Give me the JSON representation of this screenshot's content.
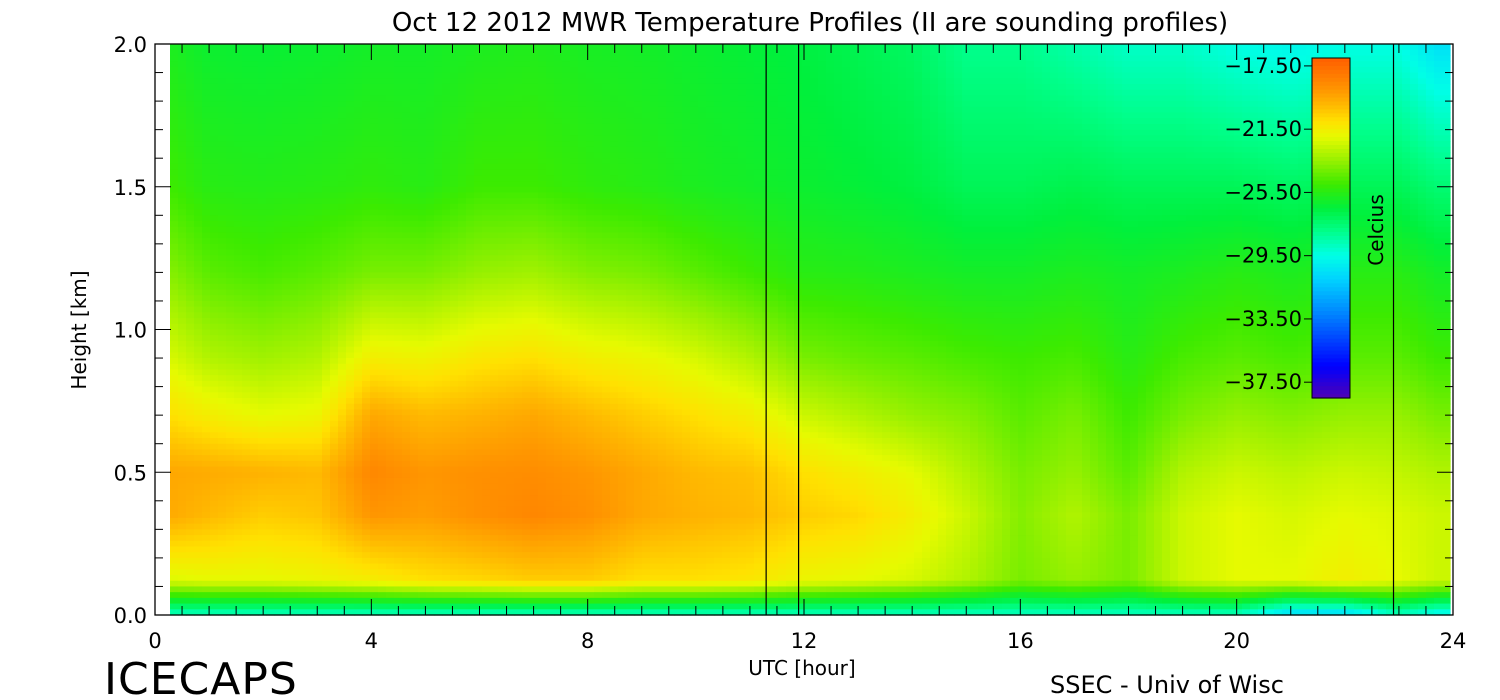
{
  "chart_data": {
    "type": "heatmap",
    "title": "Oct 12 2012 MWR Temperature Profiles (II are sounding profiles)",
    "xlabel": "UTC [hour]",
    "ylabel": "Height [km]",
    "xlim": [
      0,
      24
    ],
    "ylim": [
      0,
      2
    ],
    "x_ticks": [
      "0",
      "4",
      "8",
      "12",
      "16",
      "20",
      "24"
    ],
    "y_ticks": [
      "0.0",
      "0.5",
      "1.0",
      "1.5",
      "2.0"
    ],
    "colorbar": {
      "label": "Celcius",
      "ticks": [
        "-17.50",
        "-21.50",
        "-25.50",
        "-29.50",
        "-33.50",
        "-37.50"
      ],
      "range": [
        -38.5,
        -17.0
      ]
    },
    "sounding_markers_utc": [
      11.3,
      11.9,
      22.9
    ],
    "annotations": {
      "brand": "ICECAPS",
      "credit": "SSEC - Univ of Wisc"
    },
    "profiles": [
      {
        "time": 0.3,
        "values": [
          -29,
          -22.2,
          -19.6,
          -19.5,
          -21.0,
          -22.3,
          -23.8,
          -25.0,
          -25.8
        ]
      },
      {
        "time": 1.0,
        "values": [
          -29,
          -22.0,
          -20.0,
          -19.6,
          -21.5,
          -23.0,
          -24.5,
          -25.5,
          -26.2
        ]
      },
      {
        "time": 2.0,
        "values": [
          -29,
          -22.0,
          -20.5,
          -19.8,
          -22.0,
          -23.3,
          -24.8,
          -25.6,
          -26.3
        ]
      },
      {
        "time": 3.0,
        "values": [
          -29,
          -21.8,
          -20.3,
          -20.0,
          -21.8,
          -23.0,
          -24.5,
          -25.5,
          -26.2
        ]
      },
      {
        "time": 4.0,
        "values": [
          -29,
          -21.5,
          -19.0,
          -18.5,
          -19.5,
          -21.5,
          -24.0,
          -25.3,
          -26.0
        ]
      },
      {
        "time": 5.0,
        "values": [
          -29,
          -21.0,
          -19.2,
          -19.0,
          -20.0,
          -21.7,
          -24.0,
          -25.5,
          -26.0
        ]
      },
      {
        "time": 6.0,
        "values": [
          -29,
          -20.8,
          -18.8,
          -18.8,
          -19.8,
          -21.2,
          -23.5,
          -25.0,
          -25.8
        ]
      },
      {
        "time": 7.0,
        "values": [
          -29,
          -20.5,
          -18.5,
          -18.7,
          -19.5,
          -21.0,
          -23.3,
          -25.0,
          -25.7
        ]
      },
      {
        "time": 8.0,
        "values": [
          -29,
          -20.5,
          -18.8,
          -19.0,
          -20.0,
          -21.5,
          -23.8,
          -25.3,
          -25.9
        ]
      },
      {
        "time": 9.0,
        "values": [
          -29,
          -21.0,
          -19.5,
          -19.5,
          -20.5,
          -21.8,
          -24.0,
          -25.5,
          -26.0
        ]
      },
      {
        "time": 10.0,
        "values": [
          -29,
          -21.0,
          -19.8,
          -20.0,
          -21.0,
          -22.3,
          -24.5,
          -25.8,
          -26.2
        ]
      },
      {
        "time": 11.0,
        "values": [
          -29,
          -21.2,
          -20.0,
          -20.2,
          -21.5,
          -23.0,
          -25.0,
          -26.0,
          -26.4
        ]
      },
      {
        "time": 12.0,
        "values": [
          -29,
          -21.8,
          -20.5,
          -21.0,
          -22.5,
          -24.0,
          -25.5,
          -26.2,
          -26.6
        ]
      },
      {
        "time": 13.0,
        "values": [
          -29,
          -22.0,
          -20.8,
          -21.5,
          -23.0,
          -24.3,
          -25.6,
          -26.4,
          -26.9
        ]
      },
      {
        "time": 14.0,
        "values": [
          -29,
          -22.3,
          -21.5,
          -22.0,
          -23.5,
          -24.5,
          -25.8,
          -26.6,
          -27.2
        ]
      },
      {
        "time": 15.0,
        "values": [
          -29,
          -23.0,
          -22.5,
          -23.0,
          -23.8,
          -24.8,
          -26.0,
          -27.0,
          -28.0
        ]
      },
      {
        "time": 16.0,
        "values": [
          -29,
          -24.0,
          -23.8,
          -24.0,
          -24.5,
          -25.0,
          -26.0,
          -27.0,
          -28.0
        ]
      },
      {
        "time": 17.0,
        "values": [
          -29,
          -23.5,
          -23.0,
          -23.5,
          -24.0,
          -24.8,
          -25.8,
          -26.8,
          -28.5
        ]
      },
      {
        "time": 18.0,
        "values": [
          -29,
          -24.0,
          -24.0,
          -24.5,
          -25.0,
          -25.5,
          -26.0,
          -27.0,
          -29.0
        ]
      },
      {
        "time": 19.0,
        "values": [
          -29,
          -22.5,
          -22.5,
          -23.0,
          -24.0,
          -24.8,
          -25.8,
          -27.0,
          -29.0
        ]
      },
      {
        "time": 20.0,
        "values": [
          -29,
          -22.0,
          -22.0,
          -22.5,
          -23.5,
          -24.5,
          -25.5,
          -27.0,
          -29.5
        ]
      },
      {
        "time": 21.0,
        "values": [
          -31,
          -22.0,
          -22.3,
          -22.8,
          -23.8,
          -24.8,
          -25.8,
          -27.2,
          -29.8
        ]
      },
      {
        "time": 22.0,
        "values": [
          -31,
          -21.5,
          -22.0,
          -22.5,
          -23.5,
          -24.5,
          -25.5,
          -27.0,
          -29.5
        ]
      },
      {
        "time": 23.0,
        "values": [
          -29,
          -22.0,
          -22.2,
          -22.7,
          -23.5,
          -24.5,
          -25.5,
          -27.0,
          -29.5
        ]
      },
      {
        "time": 23.7,
        "values": [
          -30,
          -22.5,
          -22.5,
          -23.0,
          -24.0,
          -25.0,
          -26.0,
          -27.5,
          -30.5
        ]
      }
    ],
    "profile_heights_km": [
      0.0,
      0.12,
      0.35,
      0.5,
      0.7,
      0.9,
      1.2,
      1.5,
      2.0
    ]
  }
}
